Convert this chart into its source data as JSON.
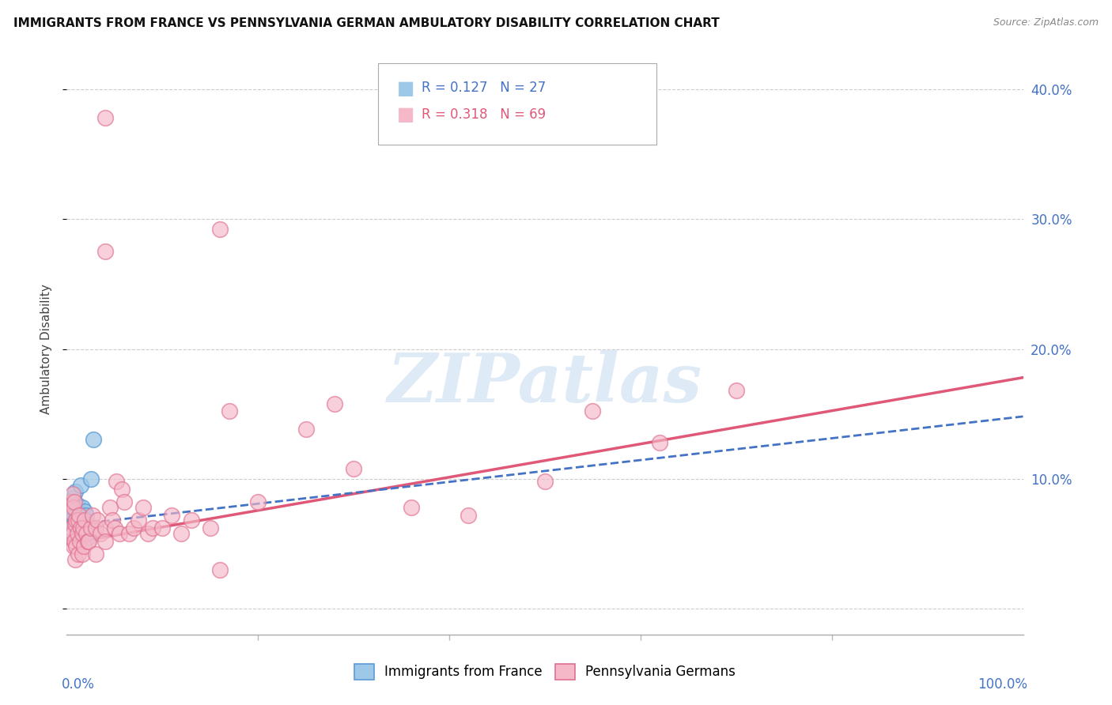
{
  "title": "IMMIGRANTS FROM FRANCE VS PENNSYLVANIA GERMAN AMBULATORY DISABILITY CORRELATION CHART",
  "source": "Source: ZipAtlas.com",
  "ylabel": "Ambulatory Disability",
  "r_france": 0.127,
  "n_france": 27,
  "r_penn": 0.318,
  "n_penn": 69,
  "france_color": "#9ec8e8",
  "france_edge_color": "#5b9bd5",
  "penn_color": "#f4b8c8",
  "penn_edge_color": "#e07090",
  "france_line_color": "#4472c4",
  "penn_line_color": "#e05878",
  "watermark_color": "#c8dff0",
  "france_x": [
    0.004,
    0.005,
    0.006,
    0.006,
    0.007,
    0.007,
    0.008,
    0.009,
    0.009,
    0.01,
    0.01,
    0.011,
    0.011,
    0.012,
    0.013,
    0.014,
    0.015,
    0.016,
    0.016,
    0.017,
    0.018,
    0.019,
    0.02,
    0.021,
    0.022,
    0.025,
    0.028
  ],
  "france_y": [
    0.06,
    0.065,
    0.075,
    0.082,
    0.07,
    0.085,
    0.078,
    0.09,
    0.068,
    0.072,
    0.065,
    0.08,
    0.075,
    0.075,
    0.07,
    0.072,
    0.095,
    0.065,
    0.078,
    0.072,
    0.06,
    0.075,
    0.072,
    0.065,
    0.055,
    0.1,
    0.13
  ],
  "penn_x": [
    0.003,
    0.004,
    0.005,
    0.005,
    0.006,
    0.006,
    0.007,
    0.007,
    0.008,
    0.008,
    0.009,
    0.009,
    0.01,
    0.01,
    0.011,
    0.012,
    0.012,
    0.013,
    0.014,
    0.015,
    0.016,
    0.016,
    0.017,
    0.018,
    0.019,
    0.02,
    0.022,
    0.023,
    0.025,
    0.027,
    0.03,
    0.03,
    0.032,
    0.035,
    0.04,
    0.04,
    0.045,
    0.048,
    0.05,
    0.052,
    0.055,
    0.058,
    0.06,
    0.065,
    0.07,
    0.075,
    0.08,
    0.085,
    0.09,
    0.1,
    0.11,
    0.12,
    0.13,
    0.15,
    0.16,
    0.17,
    0.2,
    0.25,
    0.3,
    0.36,
    0.42,
    0.5,
    0.55,
    0.62,
    0.7,
    0.04,
    0.16,
    0.28,
    0.04
  ],
  "penn_y": [
    0.075,
    0.058,
    0.082,
    0.062,
    0.088,
    0.058,
    0.078,
    0.048,
    0.082,
    0.052,
    0.065,
    0.038,
    0.068,
    0.048,
    0.058,
    0.068,
    0.042,
    0.072,
    0.052,
    0.062,
    0.058,
    0.042,
    0.062,
    0.048,
    0.068,
    0.058,
    0.052,
    0.052,
    0.062,
    0.072,
    0.062,
    0.042,
    0.068,
    0.058,
    0.062,
    0.052,
    0.078,
    0.068,
    0.062,
    0.098,
    0.058,
    0.092,
    0.082,
    0.058,
    0.062,
    0.068,
    0.078,
    0.058,
    0.062,
    0.062,
    0.072,
    0.058,
    0.068,
    0.062,
    0.292,
    0.152,
    0.082,
    0.138,
    0.108,
    0.078,
    0.072,
    0.098,
    0.152,
    0.128,
    0.168,
    0.378,
    0.03,
    0.158,
    0.275
  ],
  "xlim": [
    0,
    1.0
  ],
  "ylim": [
    -0.02,
    0.42
  ],
  "yticks": [
    0.0,
    0.1,
    0.2,
    0.3,
    0.4
  ],
  "ytick_labels": [
    "",
    "10.0%",
    "20.0%",
    "30.0%",
    "40.0%"
  ],
  "france_line_x0": 0.0,
  "france_line_x1": 1.0,
  "france_line_y0": 0.064,
  "france_line_y1": 0.148,
  "penn_line_x0": 0.0,
  "penn_line_x1": 1.0,
  "penn_line_y0": 0.05,
  "penn_line_y1": 0.178
}
